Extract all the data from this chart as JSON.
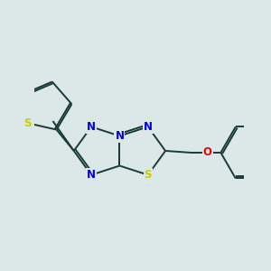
{
  "bg_color": "#dce8e8",
  "bond_color": "#1a3a3a",
  "N_color": "#0000ee",
  "S_color": "#cccc00",
  "O_color": "#ee0000",
  "font_size": 8.5,
  "figsize": [
    3.0,
    3.0
  ],
  "dpi": 100,
  "xlim": [
    -2.8,
    3.2
  ],
  "ylim": [
    -2.0,
    2.5
  ]
}
